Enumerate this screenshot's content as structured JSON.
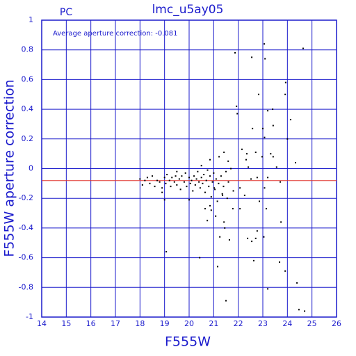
{
  "chart_data": {
    "type": "scatter",
    "title": "lmc_u5ay05",
    "subtitle": "PC",
    "annotation": "Average aperture correction: -0.081",
    "x_label": "F555W",
    "y_label": "F555W aperture correction",
    "xlim": [
      14,
      26
    ],
    "ylim": [
      -1,
      1
    ],
    "xticks": [
      14,
      15,
      16,
      17,
      18,
      19,
      20,
      21,
      22,
      23,
      24,
      25,
      26
    ],
    "yticks": [
      -1,
      -0.8,
      -0.6,
      -0.4,
      -0.2,
      0,
      0.2,
      0.4,
      0.6,
      0.8,
      1
    ],
    "grid": true,
    "grid_color": "#1a1acc",
    "color": "#000000",
    "ref_line": -0.081,
    "ref_line_color": "#e0302a",
    "x": [
      24.64,
      23.06,
      21.87,
      22.55,
      23.09,
      22.83,
      23.91,
      23.93,
      21.93,
      21.96,
      23.4,
      23.2,
      24.13,
      23.0,
      23.42,
      22.58,
      23.07,
      24.0,
      22.15,
      22.71,
      22.35,
      21.42,
      21.22,
      21.59,
      20.85,
      23.32,
      23.42,
      23.56,
      22.97,
      24.33,
      22.32,
      22.41,
      22.52,
      22.77,
      23.2,
      23.71,
      23.07,
      22.07,
      22.26,
      21.02,
      21.36,
      21.78,
      22.07,
      20.85,
      20.65,
      21.08,
      21.42,
      20.74,
      22.86,
      23.14,
      23.74,
      22.77,
      22.38,
      22.71,
      22.55,
      23.04,
      21.25,
      21.45,
      19.07,
      20.43,
      22.63,
      23.68,
      21.16,
      23.91,
      23.2,
      24.39,
      21.5,
      24.47,
      24.7,
      21.64,
      18.0,
      18.1,
      18.2,
      18.3,
      18.4,
      18.5,
      18.6,
      18.7,
      18.8,
      18.9,
      19.0,
      19.05,
      19.1,
      19.2,
      19.25,
      19.3,
      19.4,
      19.45,
      19.5,
      19.6,
      19.65,
      19.7,
      19.8,
      19.85,
      19.9,
      20.0,
      20.05,
      20.1,
      20.15,
      20.2,
      20.25,
      20.3,
      20.35,
      20.4,
      20.45,
      20.5,
      20.55,
      20.6,
      20.65,
      20.7,
      20.75,
      20.8,
      20.85,
      20.9,
      20.95,
      21.0,
      21.05,
      21.1,
      21.15,
      21.2,
      21.3,
      21.35,
      21.4,
      21.5,
      21.55,
      21.6,
      21.7,
      21.8,
      19.0,
      18.9,
      20.0,
      19.5,
      20.5,
      20.9
    ],
    "values": [
      0.81,
      0.84,
      0.78,
      0.75,
      0.74,
      0.5,
      0.5,
      0.58,
      0.42,
      0.37,
      0.4,
      0.39,
      0.33,
      0.27,
      0.29,
      0.27,
      0.21,
      0.2,
      0.13,
      0.11,
      0.1,
      0.11,
      0.08,
      0.05,
      0.06,
      0.1,
      0.08,
      0.01,
      0.08,
      0.04,
      0.06,
      0.01,
      -0.07,
      -0.06,
      -0.06,
      -0.09,
      -0.13,
      -0.13,
      -0.18,
      -0.13,
      -0.18,
      -0.27,
      -0.27,
      -0.25,
      -0.27,
      -0.32,
      -0.36,
      -0.35,
      -0.22,
      -0.27,
      -0.36,
      -0.42,
      -0.47,
      -0.47,
      -0.49,
      -0.46,
      -0.46,
      -0.4,
      -0.56,
      -0.6,
      -0.62,
      -0.63,
      -0.66,
      -0.69,
      -0.81,
      -0.77,
      -0.89,
      -0.95,
      -0.96,
      -0.48,
      -0.07,
      -0.11,
      -0.08,
      -0.06,
      -0.1,
      -0.05,
      -0.12,
      -0.08,
      -0.09,
      -0.13,
      -0.06,
      -0.1,
      -0.04,
      -0.08,
      -0.12,
      -0.06,
      -0.09,
      -0.05,
      -0.11,
      -0.07,
      -0.14,
      -0.05,
      -0.09,
      -0.03,
      -0.12,
      -0.06,
      -0.1,
      -0.08,
      -0.15,
      -0.05,
      -0.11,
      -0.07,
      -0.02,
      -0.09,
      -0.13,
      -0.06,
      -0.1,
      -0.04,
      -0.16,
      -0.08,
      -0.01,
      -0.12,
      -0.05,
      -0.19,
      -0.09,
      -0.03,
      -0.14,
      -0.07,
      -0.22,
      -0.1,
      -0.05,
      -0.17,
      -0.12,
      -0.02,
      -0.2,
      -0.09,
      0.0,
      -0.15,
      -0.21,
      -0.16,
      -0.21,
      -0.02,
      0.02,
      -0.28
    ]
  }
}
